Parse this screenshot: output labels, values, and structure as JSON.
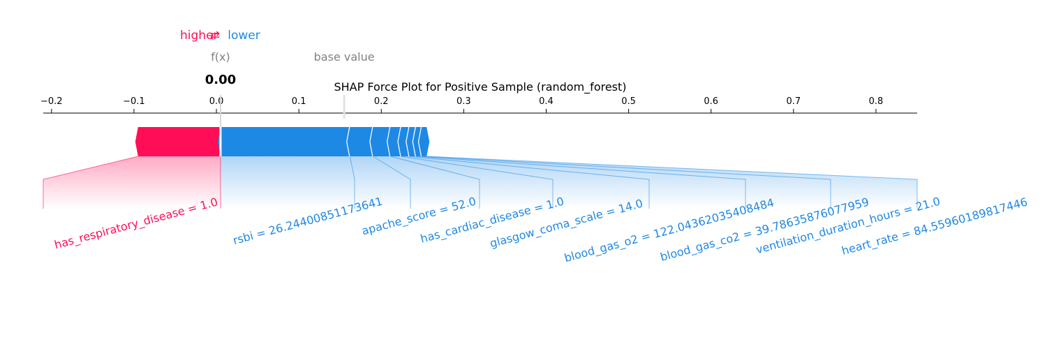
{
  "chart_data": {
    "type": "force",
    "title": "SHAP Force Plot for Positive Sample (random_forest)",
    "xlim": [
      -0.21,
      0.85
    ],
    "xticks": [
      -0.2,
      -0.1,
      0.0,
      0.1,
      0.2,
      0.3,
      0.4,
      0.5,
      0.6,
      0.7,
      0.8
    ],
    "xtick_labels": [
      "−0.2",
      "−0.1",
      "0.0",
      "0.1",
      "0.2",
      "0.3",
      "0.4",
      "0.5",
      "0.6",
      "0.7",
      "0.8"
    ],
    "output_value": 0.005,
    "output_label": "f(x)",
    "output_text": "0.00",
    "base_value": 0.155,
    "base_label": "base value",
    "legend": {
      "higher": "higher",
      "lower": "lower",
      "arrow": "⇄"
    },
    "colors": {
      "positive": "#ff0d57",
      "negative": "#1e88e5"
    },
    "positive_features": [
      {
        "label": "has_respiratory_disease = 1.0",
        "start": -0.095,
        "end": 0.005
      }
    ],
    "negative_features": [
      {
        "label": "rsbi = 26.24400851173641",
        "start": 0.005,
        "end": 0.162
      },
      {
        "label": "apache_score = 52.0",
        "start": 0.162,
        "end": 0.19
      },
      {
        "label": "has_cardiac_disease = 1.0",
        "start": 0.19,
        "end": 0.211
      },
      {
        "label": "glasgow_coma_scale = 14.0",
        "start": 0.211,
        "end": 0.224
      },
      {
        "label": "blood_gas_o2 = 122.04362035408484",
        "start": 0.224,
        "end": 0.234
      },
      {
        "label": "blood_gas_co2 = 39.78635876077959",
        "start": 0.234,
        "end": 0.242
      },
      {
        "label": "ventilation_duration_hours = 21.0",
        "start": 0.242,
        "end": 0.249
      },
      {
        "label": "heart_rate = 84.55960189817446",
        "start": 0.249,
        "end": 0.255
      }
    ]
  }
}
